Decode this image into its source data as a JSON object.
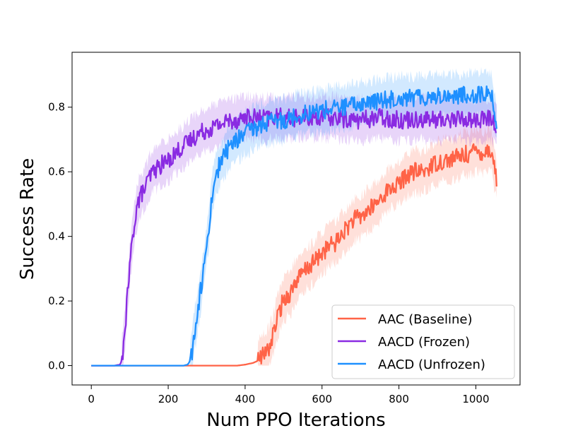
{
  "chart_data": {
    "type": "line",
    "title": "",
    "xlabel": "Num PPO Iterations",
    "ylabel": "Success Rate",
    "xlim": [
      -50,
      1115
    ],
    "ylim": [
      -0.06,
      0.97
    ],
    "xticks": [
      0,
      200,
      400,
      600,
      800,
      1000
    ],
    "xtick_labels": [
      "0",
      "200",
      "400",
      "600",
      "800",
      "1000"
    ],
    "yticks": [
      0.0,
      0.2,
      0.4,
      0.6,
      0.8
    ],
    "ytick_labels": [
      "0.0",
      "0.2",
      "0.4",
      "0.6",
      "0.8"
    ],
    "grid": false,
    "legend_position": "bottom-right",
    "series": [
      {
        "name": "AAC (Baseline)",
        "color": "#ff6347",
        "x": [
          0,
          100,
          200,
          250,
          300,
          380,
          400,
          420,
          430,
          440,
          450,
          460,
          470,
          480,
          490,
          500,
          510,
          520,
          530,
          540,
          550,
          560,
          580,
          600,
          620,
          640,
          660,
          680,
          700,
          720,
          740,
          760,
          780,
          800,
          820,
          840,
          860,
          880,
          900,
          920,
          940,
          960,
          980,
          1000,
          1020,
          1040,
          1055
        ],
        "values": [
          0,
          0,
          0,
          0,
          0,
          0,
          0.003,
          0.008,
          0.013,
          0.023,
          0.035,
          0.05,
          0.08,
          0.13,
          0.17,
          0.205,
          0.215,
          0.23,
          0.26,
          0.27,
          0.285,
          0.3,
          0.32,
          0.35,
          0.37,
          0.385,
          0.42,
          0.45,
          0.46,
          0.48,
          0.5,
          0.53,
          0.55,
          0.56,
          0.59,
          0.6,
          0.6,
          0.615,
          0.63,
          0.635,
          0.64,
          0.65,
          0.655,
          0.665,
          0.66,
          0.67,
          0.57
        ]
      },
      {
        "name": "AACD (Frozen)",
        "color": "#8a2be2",
        "x": [
          0,
          60,
          75,
          80,
          85,
          90,
          95,
          100,
          105,
          110,
          115,
          120,
          130,
          140,
          150,
          160,
          170,
          180,
          190,
          200,
          220,
          240,
          260,
          280,
          300,
          320,
          340,
          360,
          380,
          400,
          450,
          500,
          550,
          600,
          650,
          700,
          750,
          800,
          850,
          900,
          950,
          1000,
          1040,
          1055
        ],
        "values": [
          0,
          0,
          0.003,
          0.02,
          0.08,
          0.15,
          0.23,
          0.3,
          0.37,
          0.42,
          0.47,
          0.5,
          0.53,
          0.55,
          0.58,
          0.6,
          0.61,
          0.62,
          0.63,
          0.635,
          0.66,
          0.68,
          0.7,
          0.72,
          0.73,
          0.74,
          0.75,
          0.76,
          0.76,
          0.77,
          0.765,
          0.77,
          0.765,
          0.77,
          0.765,
          0.76,
          0.77,
          0.76,
          0.765,
          0.76,
          0.765,
          0.76,
          0.765,
          0.74
        ]
      },
      {
        "name": "AACD (Unfrozen)",
        "color": "#1e90ff",
        "x": [
          0,
          100,
          200,
          240,
          250,
          255,
          260,
          265,
          270,
          275,
          280,
          285,
          290,
          295,
          300,
          305,
          310,
          315,
          320,
          330,
          340,
          350,
          360,
          380,
          400,
          420,
          450,
          500,
          550,
          600,
          650,
          700,
          750,
          800,
          850,
          900,
          950,
          1000,
          1040,
          1055
        ],
        "values": [
          0,
          0,
          0,
          0,
          0.003,
          0.01,
          0.03,
          0.07,
          0.12,
          0.16,
          0.2,
          0.24,
          0.28,
          0.32,
          0.37,
          0.42,
          0.48,
          0.53,
          0.57,
          0.61,
          0.64,
          0.66,
          0.68,
          0.7,
          0.72,
          0.73,
          0.75,
          0.76,
          0.78,
          0.79,
          0.8,
          0.81,
          0.82,
          0.83,
          0.83,
          0.835,
          0.835,
          0.84,
          0.84,
          0.745
        ]
      }
    ]
  }
}
